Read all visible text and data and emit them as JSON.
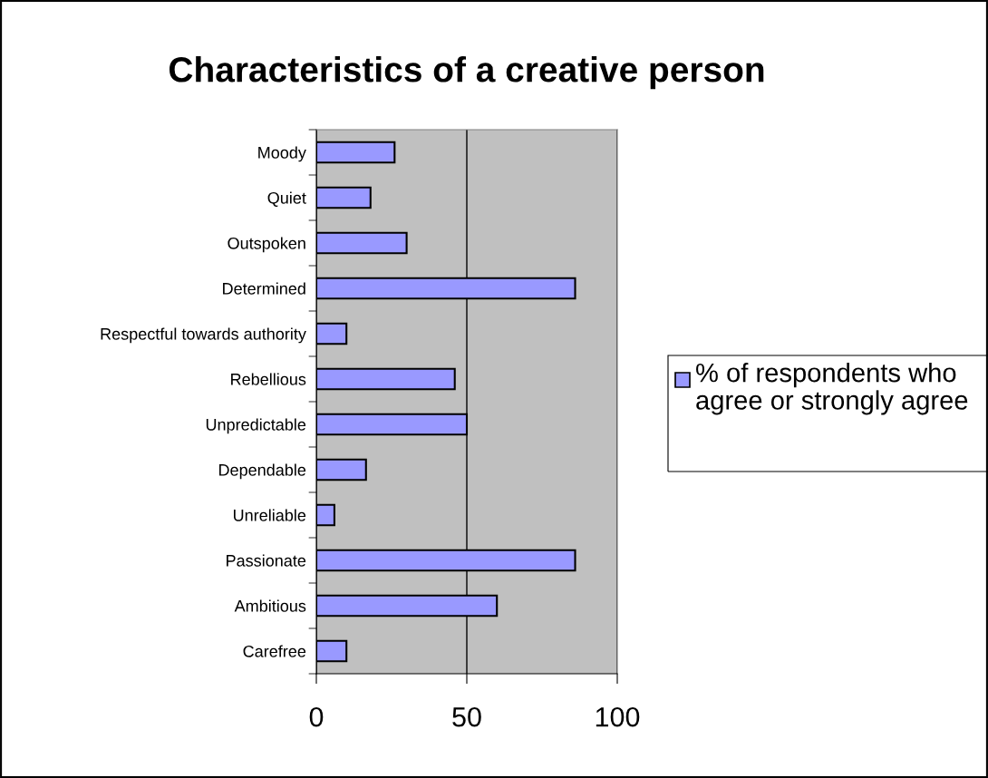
{
  "chart_data": {
    "type": "bar",
    "orientation": "horizontal",
    "title": "Characteristics of a creative person",
    "categories": [
      "Moody",
      "Quiet",
      "Outspoken",
      "Determined",
      "Respectful towards authority",
      "Rebellious",
      "Unpredictable",
      "Dependable",
      "Unreliable",
      "Passionate",
      "Ambitious",
      "Carefree"
    ],
    "series": [
      {
        "name": "% of respondents who agree or strongly agree",
        "color": "#9999ff",
        "values": [
          26,
          18,
          30,
          86,
          10,
          46,
          50,
          16.5,
          6,
          86,
          60,
          10
        ]
      }
    ],
    "xlim": [
      0,
      100
    ],
    "xticks": [
      0,
      50,
      100
    ],
    "grid": "x",
    "legend": "right"
  }
}
